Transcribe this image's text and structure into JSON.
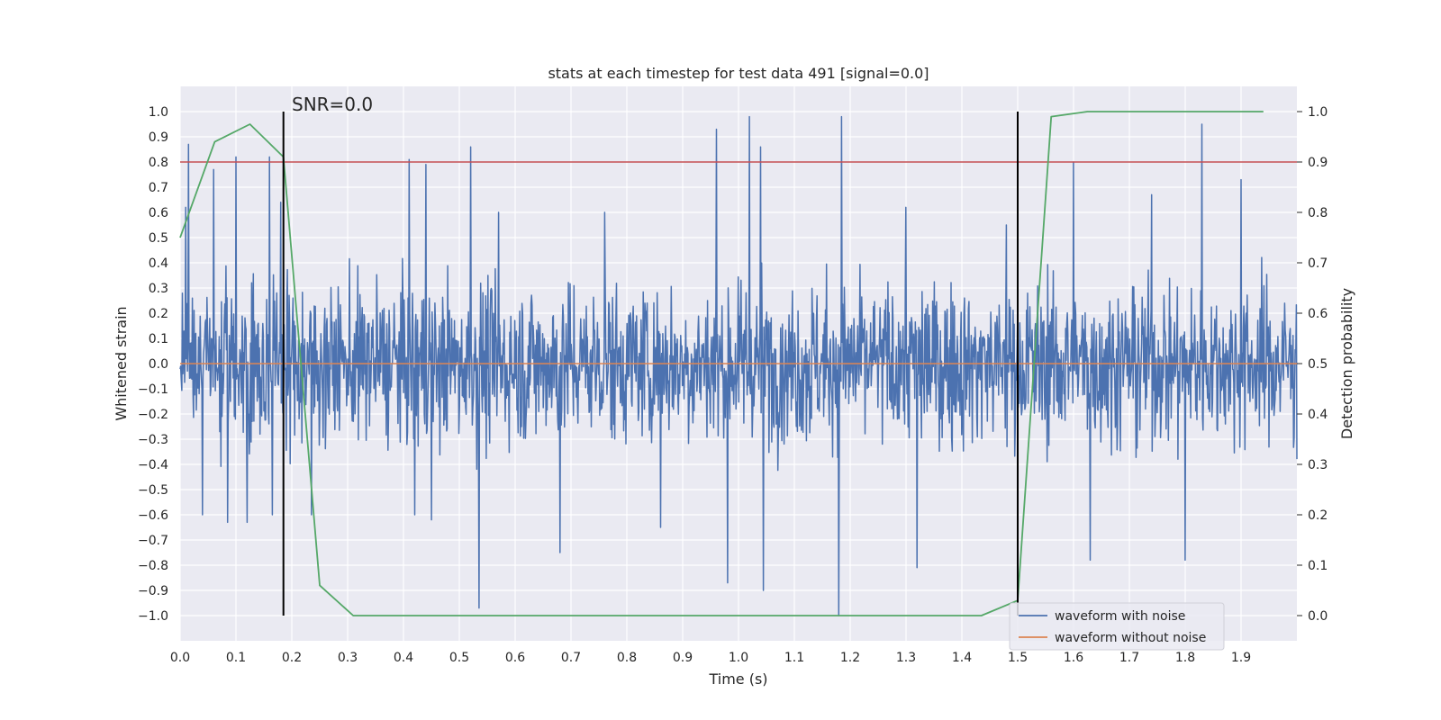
{
  "chart_data": {
    "type": "line",
    "title": "stats at each timestep for test data 491 [signal=0.0]",
    "xlabel": "Time (s)",
    "ylabel": "Whitened strain",
    "ylabel_right": "Detection probability",
    "xlim": [
      0.0,
      2.0
    ],
    "ylim": [
      -1.1,
      1.1
    ],
    "ylim_right": [
      -0.05,
      1.05
    ],
    "x_ticks": [
      "0.0",
      "0.1",
      "0.2",
      "0.3",
      "0.4",
      "0.5",
      "0.6",
      "0.7",
      "0.8",
      "0.9",
      "1.0",
      "1.1",
      "1.2",
      "1.3",
      "1.4",
      "1.5",
      "1.6",
      "1.7",
      "1.8",
      "1.9"
    ],
    "y_ticks": [
      "1.0",
      "0.9",
      "0.8",
      "0.7",
      "0.6",
      "0.5",
      "0.4",
      "0.3",
      "0.2",
      "0.1",
      "0.0",
      "−0.1",
      "−0.2",
      "−0.3",
      "−0.4",
      "−0.5",
      "−0.6",
      "−0.7",
      "−0.8",
      "−0.9",
      "−1.0"
    ],
    "y_ticks_right": [
      "1.0",
      "0.9",
      "0.8",
      "0.7",
      "0.6",
      "0.5",
      "0.4",
      "0.3",
      "0.2",
      "0.1",
      "0.0"
    ],
    "grid": true,
    "legend_position": "bottom-right",
    "annotation": "SNR=0.0",
    "series": [
      {
        "name": "waveform with noise",
        "color": "#4c72b0",
        "axis": "left",
        "kind": "noise",
        "x_range": [
          0.0,
          2.0
        ],
        "amplitude_range": [
          -1.0,
          0.98
        ],
        "peaks": [
          [
            0.01,
            0.62
          ],
          [
            0.015,
            0.87
          ],
          [
            0.04,
            -0.6
          ],
          [
            0.06,
            0.77
          ],
          [
            0.085,
            -0.63
          ],
          [
            0.1,
            0.82
          ],
          [
            0.12,
            -0.63
          ],
          [
            0.16,
            0.82
          ],
          [
            0.165,
            -0.6
          ],
          [
            0.18,
            0.64
          ],
          [
            0.235,
            -0.6
          ],
          [
            0.41,
            0.81
          ],
          [
            0.42,
            -0.6
          ],
          [
            0.44,
            0.79
          ],
          [
            0.45,
            -0.62
          ],
          [
            0.52,
            0.86
          ],
          [
            0.535,
            -0.97
          ],
          [
            0.57,
            0.6
          ],
          [
            0.68,
            -0.75
          ],
          [
            0.76,
            0.6
          ],
          [
            0.86,
            -0.65
          ],
          [
            0.96,
            0.93
          ],
          [
            0.98,
            -0.87
          ],
          [
            1.02,
            0.98
          ],
          [
            1.04,
            0.86
          ],
          [
            1.045,
            -0.9
          ],
          [
            1.18,
            -1.0
          ],
          [
            1.185,
            0.98
          ],
          [
            1.3,
            0.62
          ],
          [
            1.32,
            -0.81
          ],
          [
            1.48,
            0.55
          ],
          [
            1.6,
            0.8
          ],
          [
            1.63,
            -0.78
          ],
          [
            1.74,
            0.67
          ],
          [
            1.8,
            -0.78
          ],
          [
            1.83,
            0.95
          ],
          [
            1.9,
            0.73
          ]
        ]
      },
      {
        "name": "waveform without noise",
        "color": "#dd8452",
        "axis": "left",
        "x": [
          0.0,
          2.0
        ],
        "y": [
          0.0,
          0.0
        ]
      },
      {
        "name": "",
        "color": "#55a868",
        "axis": "right",
        "x": [
          0.0,
          0.062,
          0.125,
          0.185,
          0.25,
          0.31,
          0.375,
          0.5,
          0.625,
          0.75,
          0.875,
          1.0,
          1.125,
          1.25,
          1.375,
          1.435,
          1.5,
          1.56,
          1.625,
          1.75,
          1.875,
          1.94
        ],
        "y": [
          0.75,
          0.94,
          0.975,
          0.91,
          0.06,
          0.0,
          0.0,
          0.0,
          0.0,
          0.0,
          0.0,
          0.0,
          0.0,
          0.0,
          0.0,
          0.0,
          0.03,
          0.99,
          1.0,
          1.0,
          1.0,
          1.0
        ]
      }
    ],
    "threshold_line": {
      "color": "#c44e52",
      "axis": "right",
      "y": 0.9
    },
    "vertical_markers": {
      "color": "#000000",
      "x": [
        0.185,
        1.5
      ],
      "y_range": [
        -1.0,
        1.0
      ]
    }
  }
}
